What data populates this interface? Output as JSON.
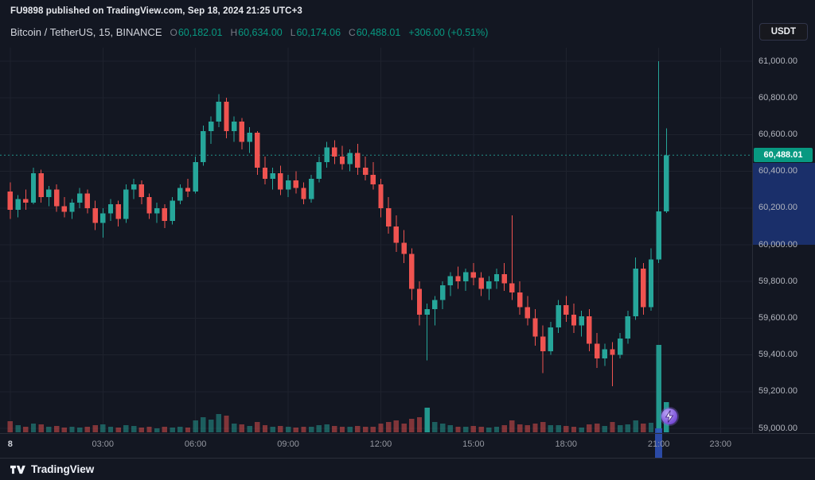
{
  "attribution": "FU9898 published on TradingView.com, Sep 18, 2024 21:25 UTC+3",
  "legend": {
    "symbol": "Bitcoin / TetherUS, 15, BINANCE",
    "ohlc": [
      {
        "label": "O",
        "value": "60,182.01"
      },
      {
        "label": "H",
        "value": "60,634.00"
      },
      {
        "label": "L",
        "value": "60,174.06"
      },
      {
        "label": "C",
        "value": "60,488.01"
      }
    ],
    "change": "+306.00 (+0.51%)"
  },
  "currency_button": "USDT",
  "price_scale": {
    "max": 61000,
    "min": 59000,
    "step": 200,
    "labels": [
      {
        "text": "61,000.00",
        "value": 61000
      },
      {
        "text": "60,800.00",
        "value": 60800
      },
      {
        "text": "60,600.00",
        "value": 60600
      },
      {
        "text": "60,400.00",
        "value": 60400
      },
      {
        "text": "60,200.00",
        "value": 60200
      },
      {
        "text": "60,000.00",
        "value": 60000
      },
      {
        "text": "59,800.00",
        "value": 59800
      },
      {
        "text": "59,600.00",
        "value": 59600
      },
      {
        "text": "59,400.00",
        "value": 59400
      },
      {
        "text": "59,200.00",
        "value": 59200
      },
      {
        "text": "59,000.00",
        "value": 59000
      }
    ],
    "current_price": 60488.01,
    "current_price_label": "60,488.01",
    "highlight_from": 60445,
    "highlight_to": 60000
  },
  "time_axis": {
    "labels": [
      {
        "text": "8",
        "index": 0,
        "major": true
      },
      {
        "text": "03:00",
        "index": 12
      },
      {
        "text": "06:00",
        "index": 24
      },
      {
        "text": "09:00",
        "index": 36
      },
      {
        "text": "12:00",
        "index": 48
      },
      {
        "text": "15:00",
        "index": 60
      },
      {
        "text": "18:00",
        "index": 72
      },
      {
        "text": "21:00",
        "index": 84
      },
      {
        "text": "23:00",
        "index": 92
      }
    ]
  },
  "footer": {
    "brand": "TradingView"
  },
  "icons": {
    "boost": "lightning-bolt",
    "logo": "tradingview-mark"
  },
  "colors": {
    "up": "#26a69a",
    "down": "#ef5350",
    "value_text": "#089981",
    "grid": "#1e222d",
    "dotted_price_line": "#26a69a",
    "badge_bg": "#089981",
    "scale_highlight": "rgba(41,98,255,0.33)",
    "time_marker": "rgba(48,84,189,0.85)",
    "background": "#131722"
  },
  "chart_data": {
    "type": "candlestick",
    "title": "Bitcoin / TetherUS, 15, BINANCE",
    "symbol": "Bitcoin / TetherUS",
    "exchange": "BINANCE",
    "interval_minutes": 15,
    "ylim": [
      59000,
      61000
    ],
    "candle_format": [
      "open",
      "high",
      "low",
      "close",
      "volume_rel"
    ],
    "event_marker_index": 84,
    "boost_icon_index": 85,
    "candles": [
      [
        60290,
        60340,
        60140,
        60190,
        14
      ],
      [
        60190,
        60270,
        60150,
        60250,
        9
      ],
      [
        60250,
        60300,
        60190,
        60230,
        7
      ],
      [
        60230,
        60420,
        60220,
        60390,
        11
      ],
      [
        60390,
        60410,
        60230,
        60260,
        10
      ],
      [
        60260,
        60320,
        60210,
        60300,
        7
      ],
      [
        60300,
        60330,
        60180,
        60210,
        8
      ],
      [
        60210,
        60260,
        60150,
        60180,
        6
      ],
      [
        60180,
        60250,
        60140,
        60230,
        7
      ],
      [
        60230,
        60310,
        60200,
        60280,
        6
      ],
      [
        60280,
        60300,
        60170,
        60200,
        7
      ],
      [
        60200,
        60240,
        60080,
        60120,
        9
      ],
      [
        60120,
        60200,
        60040,
        60170,
        10
      ],
      [
        60170,
        60250,
        60130,
        60220,
        7
      ],
      [
        60220,
        60240,
        60100,
        60140,
        6
      ],
      [
        60140,
        60330,
        60120,
        60300,
        9
      ],
      [
        60300,
        60360,
        60250,
        60330,
        8
      ],
      [
        60330,
        60350,
        60220,
        60260,
        6
      ],
      [
        60260,
        60280,
        60140,
        60170,
        7
      ],
      [
        60170,
        60230,
        60120,
        60200,
        5
      ],
      [
        60200,
        60220,
        60090,
        60130,
        7
      ],
      [
        60130,
        60260,
        60110,
        60240,
        6
      ],
      [
        60240,
        60330,
        60220,
        60310,
        7
      ],
      [
        60310,
        60360,
        60260,
        60290,
        6
      ],
      [
        60290,
        60480,
        60280,
        60450,
        15
      ],
      [
        60450,
        60650,
        60430,
        60620,
        19
      ],
      [
        60620,
        60700,
        60550,
        60670,
        16
      ],
      [
        60670,
        60820,
        60640,
        60780,
        23
      ],
      [
        60780,
        60800,
        60580,
        60620,
        21
      ],
      [
        60620,
        60700,
        60560,
        60670,
        11
      ],
      [
        60670,
        60690,
        60520,
        60560,
        10
      ],
      [
        60560,
        60640,
        60500,
        60610,
        8
      ],
      [
        60610,
        60620,
        60380,
        60420,
        13
      ],
      [
        60420,
        60480,
        60330,
        60360,
        9
      ],
      [
        60360,
        60420,
        60300,
        60390,
        7
      ],
      [
        60390,
        60430,
        60270,
        60300,
        8
      ],
      [
        60300,
        60380,
        60260,
        60350,
        7
      ],
      [
        60350,
        60400,
        60280,
        60310,
        6
      ],
      [
        60310,
        60340,
        60220,
        60250,
        7
      ],
      [
        60250,
        60380,
        60230,
        60360,
        7
      ],
      [
        60360,
        60480,
        60340,
        60450,
        9
      ],
      [
        60450,
        60560,
        60420,
        60530,
        10
      ],
      [
        60530,
        60570,
        60440,
        60480,
        8
      ],
      [
        60480,
        60540,
        60410,
        60440,
        7
      ],
      [
        60440,
        60520,
        60400,
        60500,
        7
      ],
      [
        60500,
        60550,
        60380,
        60420,
        8
      ],
      [
        60420,
        60480,
        60350,
        60380,
        7
      ],
      [
        60380,
        60450,
        60300,
        60330,
        7
      ],
      [
        60330,
        60360,
        60150,
        60200,
        11
      ],
      [
        60200,
        60260,
        60060,
        60100,
        13
      ],
      [
        60100,
        60160,
        59960,
        60010,
        15
      ],
      [
        60010,
        60080,
        59900,
        59950,
        11
      ],
      [
        59950,
        59980,
        59700,
        59760,
        17
      ],
      [
        59760,
        59800,
        59560,
        59620,
        19
      ],
      [
        59620,
        59680,
        59370,
        59650,
        31
      ],
      [
        59650,
        59720,
        59560,
        59700,
        13
      ],
      [
        59700,
        59800,
        59650,
        59780,
        11
      ],
      [
        59780,
        59850,
        59720,
        59830,
        9
      ],
      [
        59830,
        59880,
        59760,
        59800,
        7
      ],
      [
        59800,
        59870,
        59750,
        59850,
        7
      ],
      [
        59850,
        59900,
        59780,
        59820,
        8
      ],
      [
        59820,
        59850,
        59720,
        59760,
        7
      ],
      [
        59760,
        59830,
        59700,
        59800,
        6
      ],
      [
        59800,
        59870,
        59760,
        59840,
        7
      ],
      [
        59840,
        59900,
        59750,
        59790,
        9
      ],
      [
        59790,
        60160,
        59700,
        59740,
        15
      ],
      [
        59740,
        59800,
        59620,
        59660,
        10
      ],
      [
        59660,
        59720,
        59560,
        59600,
        9
      ],
      [
        59600,
        59650,
        59450,
        59500,
        11
      ],
      [
        59500,
        59560,
        59300,
        59420,
        13
      ],
      [
        59420,
        59580,
        59400,
        59550,
        9
      ],
      [
        59550,
        59700,
        59520,
        59670,
        9
      ],
      [
        59670,
        59720,
        59580,
        59620,
        8
      ],
      [
        59620,
        59680,
        59520,
        59560,
        7
      ],
      [
        59560,
        59640,
        59500,
        59610,
        6
      ],
      [
        59610,
        59650,
        59420,
        59460,
        10
      ],
      [
        59460,
        59520,
        59330,
        59380,
        11
      ],
      [
        59380,
        59460,
        59340,
        59430,
        8
      ],
      [
        59430,
        59470,
        59230,
        59400,
        13
      ],
      [
        59400,
        59520,
        59380,
        59490,
        9
      ],
      [
        59490,
        59640,
        59460,
        59610,
        10
      ],
      [
        59610,
        59930,
        59590,
        59870,
        15
      ],
      [
        59870,
        59900,
        59620,
        59660,
        11
      ],
      [
        59660,
        59980,
        59640,
        59920,
        12
      ],
      [
        59920,
        61000,
        59900,
        60182,
        110
      ],
      [
        60182,
        60634,
        60174,
        60488,
        38
      ]
    ]
  }
}
